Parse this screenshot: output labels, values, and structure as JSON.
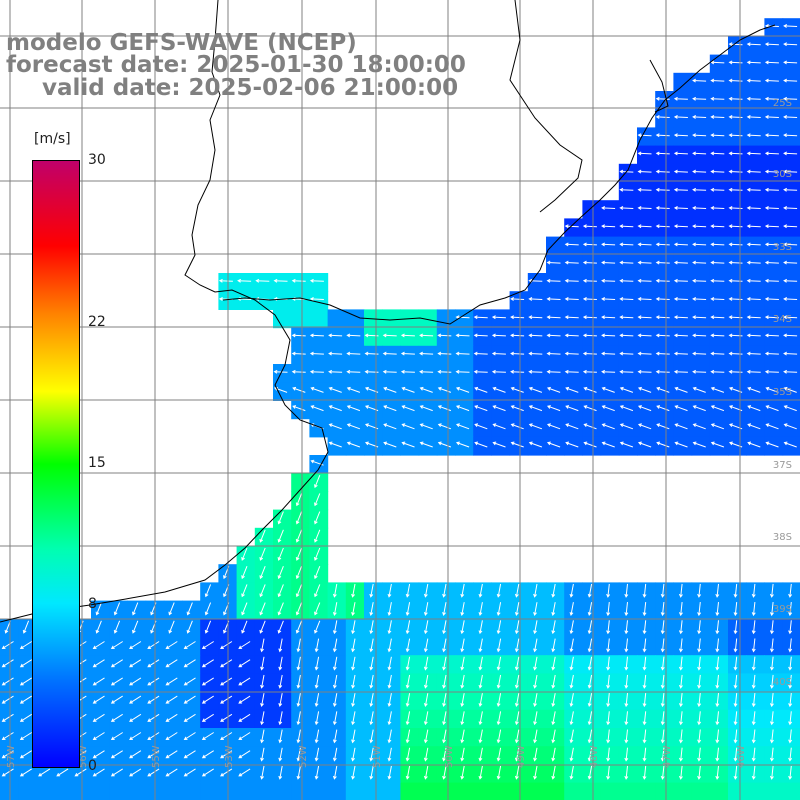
{
  "title": {
    "line1": "modelo GEFS-WAVE (NCEP)",
    "line2": "forecast date: 2025-01-30 18:00:00",
    "line3": "valid date: 2025-02-06 21:00:00"
  },
  "variable": "wind speed and direction",
  "colorbar": {
    "unit": "[m/s]",
    "min": 0,
    "max": 30,
    "ticks": [
      "30",
      "22",
      "15",
      "8",
      "0"
    ],
    "tick_values": [
      30,
      22,
      15,
      8,
      0
    ],
    "colors": [
      "#0000ff",
      "#0070ff",
      "#00e8ff",
      "#00ffb0",
      "#00ff00",
      "#ffff00",
      "#ff8000",
      "#ff0000",
      "#c0006a"
    ]
  },
  "grid": {
    "lat_labels": [
      "25S",
      "30S",
      "33S",
      "34S",
      "35S",
      "37S",
      "38S",
      "39S",
      "40S"
    ],
    "lon_labels": [
      "57W",
      "56W",
      "55W",
      "53W",
      "52W",
      "51W",
      "50W",
      "49W",
      "48W",
      "47W",
      "46W"
    ]
  },
  "map": {
    "land_color": "#ffffff",
    "grid_color": "#808080",
    "coast_color": "#000000",
    "arrow_color": "#ffffff"
  }
}
